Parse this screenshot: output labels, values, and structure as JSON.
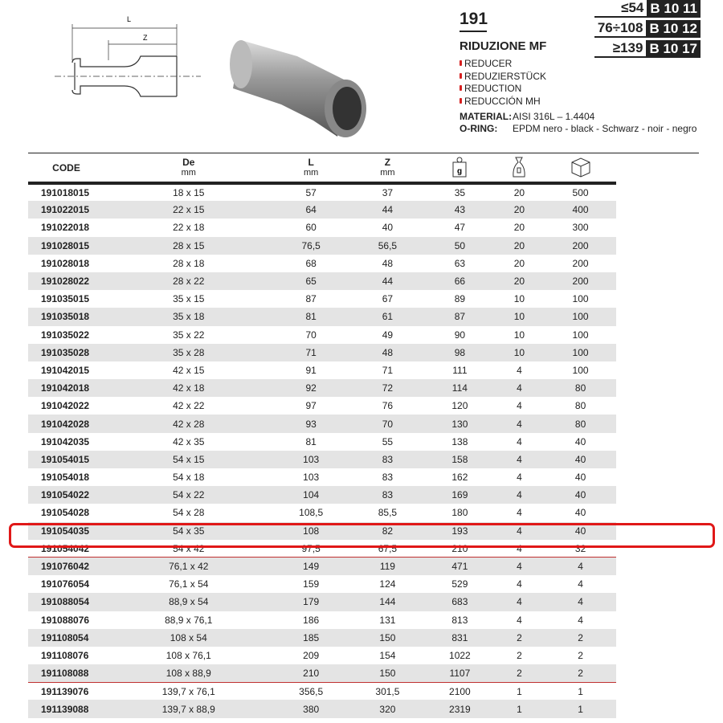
{
  "product": {
    "code": "191",
    "name": "RIDUZIONE MF",
    "translations": [
      "REDUCER",
      "REDUZIERSTÜCK",
      "REDUCTION",
      "REDUCCIÓN MH"
    ],
    "material_label": "MATERIAL:",
    "material_value": "AISI 316L – 1.4404",
    "oring_label": "O-RING:",
    "oring_value": "EPDM nero - black - Schwarz - noir - negro"
  },
  "drawing": {
    "label_L": "L",
    "label_Z": "Z"
  },
  "badges": [
    {
      "range": "≤54",
      "code": "B 10 11"
    },
    {
      "range": "76÷108",
      "code": "B 10 12"
    },
    {
      "range": "≥139",
      "code": "B 10 17"
    }
  ],
  "table": {
    "headers": [
      {
        "label": "CODE",
        "unit": ""
      },
      {
        "label": "De",
        "unit": "mm"
      },
      {
        "label": "L",
        "unit": "mm"
      },
      {
        "label": "Z",
        "unit": "mm"
      },
      {
        "icon": "weight-g-icon",
        "label": "g"
      },
      {
        "icon": "bag-icon"
      },
      {
        "icon": "box-icon"
      }
    ],
    "rows": [
      [
        "191018015",
        "18 x 15",
        "57",
        "37",
        "35",
        "20",
        "500"
      ],
      [
        "191022015",
        "22 x 15",
        "64",
        "44",
        "43",
        "20",
        "400"
      ],
      [
        "191022018",
        "22 x 18",
        "60",
        "40",
        "47",
        "20",
        "300"
      ],
      [
        "191028015",
        "28 x 15",
        "76,5",
        "56,5",
        "50",
        "20",
        "200"
      ],
      [
        "191028018",
        "28 x 18",
        "68",
        "48",
        "63",
        "20",
        "200"
      ],
      [
        "191028022",
        "28 x 22",
        "65",
        "44",
        "66",
        "20",
        "200"
      ],
      [
        "191035015",
        "35 x 15",
        "87",
        "67",
        "89",
        "10",
        "100"
      ],
      [
        "191035018",
        "35 x 18",
        "81",
        "61",
        "87",
        "10",
        "100"
      ],
      [
        "191035022",
        "35 x 22",
        "70",
        "49",
        "90",
        "10",
        "100"
      ],
      [
        "191035028",
        "35 x 28",
        "71",
        "48",
        "98",
        "10",
        "100"
      ],
      [
        "191042015",
        "42 x 15",
        "91",
        "71",
        "111",
        "4",
        "100"
      ],
      [
        "191042018",
        "42 x 18",
        "92",
        "72",
        "114",
        "4",
        "80"
      ],
      [
        "191042022",
        "42 x 22",
        "97",
        "76",
        "120",
        "4",
        "80"
      ],
      [
        "191042028",
        "42 x 28",
        "93",
        "70",
        "130",
        "4",
        "80"
      ],
      [
        "191042035",
        "42 x 35",
        "81",
        "55",
        "138",
        "4",
        "40"
      ],
      [
        "191054015",
        "54 x 15",
        "103",
        "83",
        "158",
        "4",
        "40"
      ],
      [
        "191054018",
        "54 x 18",
        "103",
        "83",
        "162",
        "4",
        "40"
      ],
      [
        "191054022",
        "54 x 22",
        "104",
        "83",
        "169",
        "4",
        "40"
      ],
      [
        "191054028",
        "54 x 28",
        "108,5",
        "85,5",
        "180",
        "4",
        "40"
      ],
      [
        "191054035",
        "54 x 35",
        "108",
        "82",
        "193",
        "4",
        "40"
      ],
      [
        "191054042",
        "54 x 42",
        "97,5",
        "67,5",
        "210",
        "4",
        "32"
      ],
      [
        "191076042",
        "76,1 x 42",
        "149",
        "119",
        "471",
        "4",
        "4"
      ],
      [
        "191076054",
        "76,1 x 54",
        "159",
        "124",
        "529",
        "4",
        "4"
      ],
      [
        "191088054",
        "88,9 x 54",
        "179",
        "144",
        "683",
        "4",
        "4"
      ],
      [
        "191088076",
        "88,9 x 76,1",
        "186",
        "131",
        "813",
        "4",
        "4"
      ],
      [
        "191108054",
        "108 x 54",
        "185",
        "150",
        "831",
        "2",
        "2"
      ],
      [
        "191108076",
        "108 x 76,1",
        "209",
        "154",
        "1022",
        "2",
        "2"
      ],
      [
        "191108088",
        "108 x 88,9",
        "210",
        "150",
        "1107",
        "2",
        "2"
      ],
      [
        "191139076",
        "139,7 x 76,1",
        "356,5",
        "301,5",
        "2100",
        "1",
        "1"
      ],
      [
        "191139088",
        "139,7 x 88,9",
        "380",
        "320",
        "2319",
        "1",
        "1"
      ]
    ],
    "separator_after": [
      "191054042",
      "191108088"
    ],
    "highlighted_row": "191054035"
  },
  "colors": {
    "accent_red": "#e01818",
    "row_alt": "#e4e4e4"
  }
}
